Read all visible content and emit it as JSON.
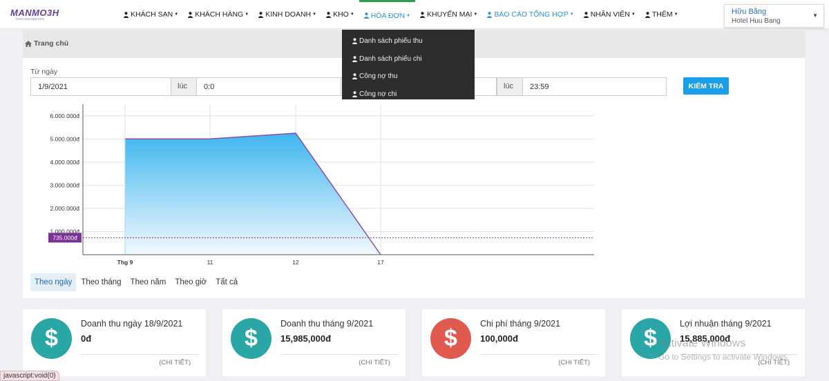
{
  "logo": {
    "brand": "MANMO3H",
    "tagline": "hotel management"
  },
  "nav": [
    {
      "label": "KHÁCH SẠN",
      "state": ""
    },
    {
      "label": "KHÁCH HÀNG",
      "state": ""
    },
    {
      "label": "KINH DOANH",
      "state": ""
    },
    {
      "label": "KHO",
      "state": ""
    },
    {
      "label": "HÓA ĐƠN",
      "state": "active"
    },
    {
      "label": "KHUYẾN MẠI",
      "state": ""
    },
    {
      "label": "BÁO CÁO TỔNG HỢP",
      "state": "blue"
    },
    {
      "label": "NHÂN VIÊN",
      "state": ""
    },
    {
      "label": "THÊM",
      "state": ""
    }
  ],
  "user": {
    "name": "Hữu Bằng",
    "hotel": "Hotel Huu Bang"
  },
  "dropdown": [
    "Danh sách phiếu thu",
    "Danh sách phiếu chi",
    "Công nợ thu",
    "Công nợ chi"
  ],
  "breadcrumb": "Trang chủ",
  "filter": {
    "from_label": "Từ ngày",
    "from_date": "1/9/2021",
    "at_label": "lúc",
    "from_time": "0:0",
    "to_date": "",
    "to_time": "23:59",
    "check_button": "KIỂM TRA"
  },
  "chart_data": {
    "type": "area",
    "x": [
      "Thg 9",
      "11",
      "12",
      "17"
    ],
    "values": [
      5000000,
      5000000,
      5250000,
      0
    ],
    "y_ticks": [
      "1.000.000đ",
      "2.000.000đ",
      "3.000.000đ",
      "4.000.000đ",
      "5.000.000đ",
      "6.000.000đ"
    ],
    "ylim": [
      0,
      6500000
    ],
    "average": 735000,
    "average_label": "735.000đ",
    "grid": true,
    "colors": {
      "fill_top": "#3fb6ee",
      "fill_bottom": "#f2f8fd",
      "line": "#8a4bb0",
      "avg_label_bg": "#7b3294"
    }
  },
  "periods": [
    {
      "label": "Theo ngày",
      "active": true
    },
    {
      "label": "Theo tháng",
      "active": false
    },
    {
      "label": "Theo năm",
      "active": false
    },
    {
      "label": "Theo giờ",
      "active": false
    },
    {
      "label": "Tất cả",
      "active": false
    }
  ],
  "stats": [
    {
      "title": "Doanh thu ngày 18/9/2021",
      "value": "0đ",
      "detail": "(CHI TIẾT)",
      "color": "#2ba6a6"
    },
    {
      "title": "Doanh thu tháng 9/2021",
      "value": "15,985,000đ",
      "detail": "(CHI TIẾT)",
      "color": "#2ba6a6"
    },
    {
      "title": "Chi phí tháng 9/2021",
      "value": "100,000đ",
      "detail": "(CHI TIẾT)",
      "color": "#e05a4f"
    },
    {
      "title": "Lợi nhuận tháng 9/2021",
      "value": "15,885,000đ",
      "detail": "(CHI TIẾT)",
      "color": "#2ba6a6"
    }
  ],
  "watermark": {
    "title": "Activate Windows",
    "subtitle": "Go to Settings to activate Windows."
  },
  "status_bar": "javascript:void(0)"
}
